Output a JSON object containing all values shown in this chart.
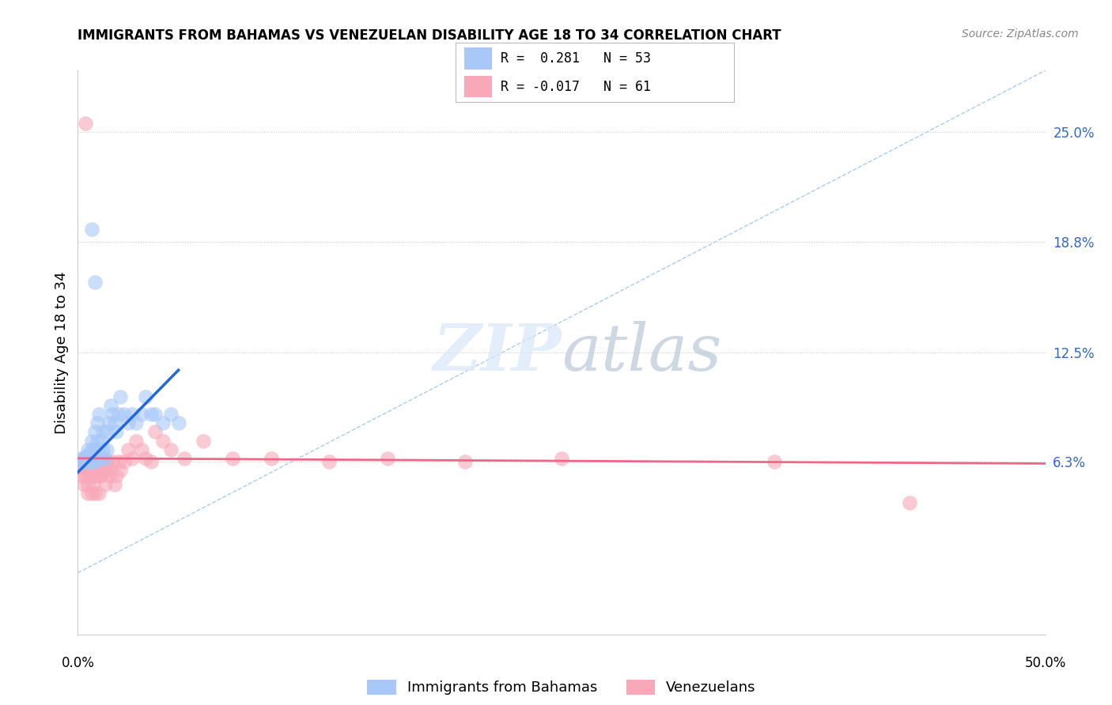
{
  "title": "IMMIGRANTS FROM BAHAMAS VS VENEZUELAN DISABILITY AGE 18 TO 34 CORRELATION CHART",
  "source": "Source: ZipAtlas.com",
  "ylabel": "Disability Age 18 to 34",
  "ytick_labels": [
    "6.3%",
    "12.5%",
    "18.8%",
    "25.0%"
  ],
  "ytick_values": [
    0.063,
    0.125,
    0.188,
    0.25
  ],
  "xmin": 0.0,
  "xmax": 0.5,
  "ymin": -0.035,
  "ymax": 0.285,
  "color_blue": "#A8C8F8",
  "color_pink": "#F8A8B8",
  "line_blue": "#2266DD",
  "line_pink": "#EE6688",
  "diag_color": "#AACCEE",
  "blue_scatter_x": [
    0.001,
    0.002,
    0.002,
    0.003,
    0.003,
    0.004,
    0.004,
    0.005,
    0.005,
    0.005,
    0.006,
    0.006,
    0.006,
    0.007,
    0.007,
    0.007,
    0.008,
    0.008,
    0.009,
    0.009,
    0.009,
    0.01,
    0.01,
    0.01,
    0.011,
    0.011,
    0.012,
    0.012,
    0.013,
    0.013,
    0.014,
    0.015,
    0.015,
    0.016,
    0.017,
    0.018,
    0.019,
    0.02,
    0.021,
    0.022,
    0.024,
    0.026,
    0.028,
    0.03,
    0.033,
    0.035,
    0.038,
    0.04,
    0.044,
    0.048,
    0.052,
    0.007,
    0.009
  ],
  "blue_scatter_y": [
    0.063,
    0.063,
    0.065,
    0.063,
    0.065,
    0.063,
    0.066,
    0.063,
    0.065,
    0.07,
    0.063,
    0.065,
    0.068,
    0.065,
    0.07,
    0.075,
    0.063,
    0.068,
    0.063,
    0.07,
    0.08,
    0.065,
    0.075,
    0.085,
    0.07,
    0.09,
    0.065,
    0.075,
    0.07,
    0.08,
    0.065,
    0.07,
    0.08,
    0.085,
    0.095,
    0.09,
    0.085,
    0.08,
    0.09,
    0.1,
    0.09,
    0.085,
    0.09,
    0.085,
    0.09,
    0.1,
    0.09,
    0.09,
    0.085,
    0.09,
    0.085,
    0.195,
    0.165
  ],
  "pink_scatter_x": [
    0.001,
    0.002,
    0.002,
    0.003,
    0.003,
    0.003,
    0.004,
    0.004,
    0.005,
    0.005,
    0.005,
    0.006,
    0.006,
    0.007,
    0.007,
    0.007,
    0.008,
    0.008,
    0.008,
    0.009,
    0.009,
    0.009,
    0.01,
    0.01,
    0.011,
    0.011,
    0.012,
    0.012,
    0.013,
    0.013,
    0.014,
    0.014,
    0.015,
    0.016,
    0.017,
    0.018,
    0.019,
    0.02,
    0.021,
    0.022,
    0.024,
    0.026,
    0.028,
    0.03,
    0.033,
    0.035,
    0.038,
    0.04,
    0.044,
    0.048,
    0.055,
    0.065,
    0.08,
    0.1,
    0.13,
    0.16,
    0.2,
    0.25,
    0.36,
    0.43,
    0.004
  ],
  "pink_scatter_y": [
    0.063,
    0.055,
    0.063,
    0.058,
    0.063,
    0.05,
    0.055,
    0.058,
    0.063,
    0.05,
    0.045,
    0.058,
    0.063,
    0.055,
    0.063,
    0.045,
    0.05,
    0.058,
    0.063,
    0.055,
    0.063,
    0.045,
    0.058,
    0.063,
    0.055,
    0.045,
    0.063,
    0.055,
    0.058,
    0.063,
    0.05,
    0.058,
    0.063,
    0.055,
    0.058,
    0.063,
    0.05,
    0.055,
    0.063,
    0.058,
    0.063,
    0.07,
    0.065,
    0.075,
    0.07,
    0.065,
    0.063,
    0.08,
    0.075,
    0.07,
    0.065,
    0.075,
    0.065,
    0.065,
    0.063,
    0.065,
    0.063,
    0.065,
    0.063,
    0.04,
    0.255
  ],
  "blue_line_x": [
    0.0,
    0.052
  ],
  "blue_line_y": [
    0.057,
    0.115
  ],
  "pink_line_x": [
    0.0,
    0.5
  ],
  "pink_line_y": [
    0.065,
    0.062
  ],
  "diag_line_x": [
    0.0,
    0.5
  ],
  "diag_line_y": [
    0.0,
    0.285
  ]
}
